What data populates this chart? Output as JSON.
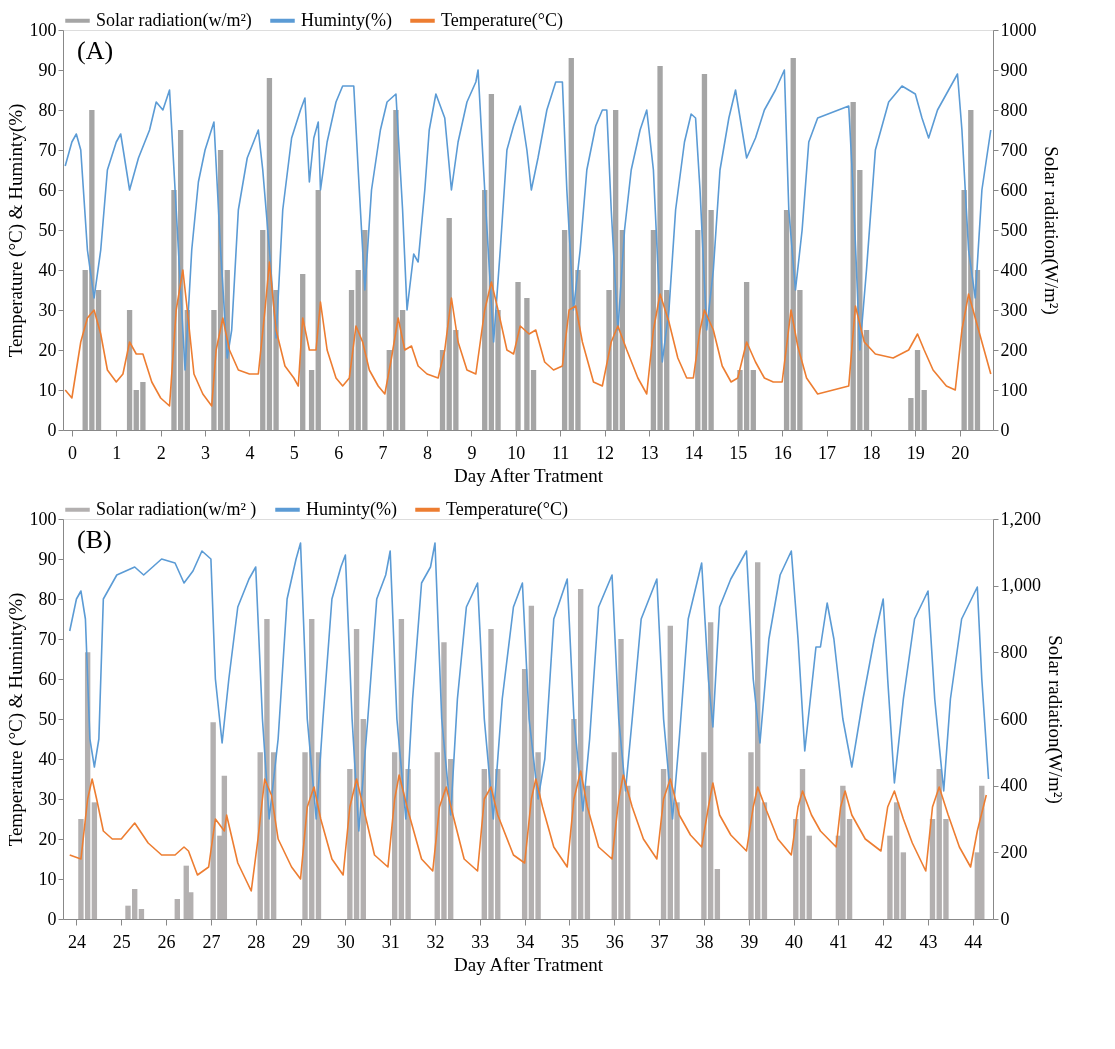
{
  "chart_data": [
    {
      "type": "line",
      "annotations": [
        "(A)"
      ],
      "xlabel": "Day After Tratment",
      "ylabel": "Temperature (°C) & Huminty(%)",
      "y2label": "Solar radiation(W/m²)",
      "xlim": [
        -0.2,
        20.75
      ],
      "xticks": [
        0,
        1,
        2,
        3,
        4,
        5,
        6,
        7,
        8,
        9,
        10,
        11,
        12,
        13,
        14,
        15,
        16,
        17,
        18,
        19,
        20
      ],
      "ylim": [
        0,
        100
      ],
      "yticks": [
        0,
        10,
        20,
        30,
        40,
        50,
        60,
        70,
        80,
        90,
        100
      ],
      "y2lim": [
        0,
        1000
      ],
      "y2ticks": [
        0,
        100,
        200,
        300,
        400,
        500,
        600,
        700,
        800,
        900,
        1000
      ],
      "grid": false,
      "legend": "top",
      "series": [
        {
          "name": "Solar radiation(w/m²)",
          "type": "bar",
          "axis": "y2",
          "color": "#a5a5a5",
          "x": [
            0.3,
            0.45,
            0.6,
            1.3,
            1.45,
            1.6,
            2.3,
            2.45,
            2.6,
            3.2,
            3.35,
            3.5,
            4.3,
            4.45,
            4.6,
            5.2,
            5.4,
            5.55,
            6.3,
            6.45,
            6.6,
            7.15,
            7.3,
            7.45,
            8.35,
            8.5,
            8.65,
            9.3,
            9.45,
            9.6,
            10.05,
            10.25,
            10.4,
            11.1,
            11.25,
            11.4,
            12.1,
            12.25,
            12.4,
            13.1,
            13.25,
            13.4,
            14.1,
            14.25,
            14.4,
            15.05,
            15.2,
            15.35,
            16.1,
            16.25,
            16.4,
            17.6,
            17.75,
            17.9,
            18.9,
            19.05,
            19.2,
            20.1,
            20.25,
            20.4
          ],
          "values": [
            400,
            800,
            350,
            300,
            100,
            120,
            600,
            750,
            300,
            300,
            700,
            400,
            500,
            880,
            350,
            390,
            150,
            600,
            350,
            400,
            500,
            200,
            800,
            300,
            200,
            530,
            250,
            600,
            840,
            300,
            370,
            330,
            150,
            500,
            930,
            400,
            350,
            800,
            500,
            500,
            910,
            350,
            500,
            890,
            550,
            150,
            370,
            150,
            550,
            930,
            350,
            820,
            650,
            250,
            80,
            200,
            100,
            600,
            800,
            400
          ]
        },
        {
          "name": "Huminty(%)",
          "axis": "y",
          "color": "#5b9bd5",
          "x": [
            -0.15,
            0.0,
            0.1,
            0.2,
            0.35,
            0.5,
            0.65,
            0.8,
            1.0,
            1.1,
            1.3,
            1.5,
            1.75,
            1.9,
            2.05,
            2.2,
            2.35,
            2.55,
            2.7,
            2.85,
            3.0,
            3.2,
            3.35,
            3.5,
            3.6,
            3.75,
            3.95,
            4.2,
            4.3,
            4.45,
            4.6,
            4.75,
            4.95,
            5.15,
            5.25,
            5.35,
            5.45,
            5.55,
            5.6,
            5.75,
            5.95,
            6.1,
            6.35,
            6.45,
            6.6,
            6.75,
            6.95,
            7.1,
            7.3,
            7.45,
            7.55,
            7.7,
            7.8,
            7.95,
            8.05,
            8.2,
            8.4,
            8.55,
            8.7,
            8.9,
            9.1,
            9.15,
            9.3,
            9.5,
            9.65,
            9.8,
            9.95,
            10.1,
            10.25,
            10.35,
            10.5,
            10.7,
            10.9,
            11.05,
            11.15,
            11.3,
            11.45,
            11.6,
            11.8,
            11.95,
            12.05,
            12.15,
            12.3,
            12.45,
            12.6,
            12.8,
            12.95,
            13.1,
            13.3,
            13.45,
            13.6,
            13.8,
            13.95,
            14.05,
            14.15,
            14.3,
            14.45,
            14.6,
            14.8,
            14.95,
            15.2,
            15.4,
            15.6,
            15.85,
            16.05,
            16.15,
            16.3,
            16.45,
            16.6,
            16.8,
            17.5,
            17.6,
            17.75,
            17.9,
            18.1,
            18.4,
            18.7,
            19.0,
            19.15,
            19.3,
            19.5,
            19.75,
            19.95,
            20.05,
            20.2,
            20.35,
            20.5,
            20.7
          ],
          "values": [
            66,
            72,
            74,
            70,
            45,
            33,
            45,
            65,
            72,
            74,
            60,
            68,
            75,
            82,
            80,
            85,
            55,
            15,
            45,
            62,
            70,
            77,
            45,
            18,
            25,
            55,
            68,
            75,
            65,
            45,
            23,
            55,
            73,
            80,
            83,
            62,
            73,
            77,
            60,
            72,
            82,
            86,
            86,
            65,
            35,
            60,
            75,
            82,
            84,
            55,
            30,
            44,
            42,
            60,
            75,
            84,
            78,
            60,
            72,
            82,
            87,
            90,
            60,
            22,
            45,
            70,
            76,
            81,
            70,
            60,
            68,
            80,
            87,
            87,
            60,
            30,
            45,
            65,
            76,
            80,
            80,
            55,
            25,
            50,
            65,
            75,
            80,
            65,
            17,
            30,
            55,
            72,
            79,
            78,
            60,
            25,
            40,
            65,
            78,
            85,
            68,
            73,
            80,
            85,
            90,
            55,
            35,
            50,
            72,
            78,
            81,
            60,
            20,
            40,
            70,
            82,
            86,
            84,
            78,
            73,
            80,
            85,
            89,
            75,
            45,
            33,
            60,
            75
          ]
        },
        {
          "name": "Temperature(°C)",
          "axis": "y",
          "color": "#ed7d31",
          "x": [
            -0.15,
            0.0,
            0.2,
            0.35,
            0.5,
            0.65,
            0.8,
            1.0,
            1.15,
            1.3,
            1.45,
            1.6,
            1.8,
            2.0,
            2.2,
            2.35,
            2.5,
            2.6,
            2.75,
            2.95,
            3.15,
            3.25,
            3.4,
            3.55,
            3.75,
            4.0,
            4.2,
            4.35,
            4.45,
            4.6,
            4.8,
            5.0,
            5.1,
            5.2,
            5.35,
            5.5,
            5.6,
            5.75,
            5.95,
            6.1,
            6.25,
            6.4,
            6.55,
            6.7,
            6.9,
            7.05,
            7.2,
            7.35,
            7.5,
            7.65,
            7.8,
            8.0,
            8.25,
            8.4,
            8.55,
            8.7,
            8.9,
            9.1,
            9.3,
            9.45,
            9.6,
            9.8,
            9.95,
            10.1,
            10.3,
            10.45,
            10.65,
            10.85,
            11.05,
            11.2,
            11.35,
            11.5,
            11.75,
            11.95,
            12.15,
            12.3,
            12.5,
            12.75,
            12.95,
            13.1,
            13.25,
            13.45,
            13.65,
            13.85,
            14.0,
            14.15,
            14.25,
            14.45,
            14.65,
            14.85,
            15.0,
            15.2,
            15.4,
            15.6,
            15.8,
            16.0,
            16.2,
            16.35,
            16.55,
            16.8,
            17.5,
            17.65,
            17.85,
            18.1,
            18.5,
            18.85,
            19.05,
            19.2,
            19.4,
            19.7,
            19.9,
            20.05,
            20.2,
            20.35,
            20.55,
            20.7
          ],
          "values": [
            10,
            8,
            22,
            28,
            30,
            24,
            15,
            12,
            14,
            22,
            19,
            19,
            12,
            8,
            6,
            30,
            40,
            30,
            14,
            9,
            6,
            20,
            28,
            20,
            15,
            14,
            14,
            30,
            42,
            25,
            16,
            13,
            11,
            28,
            20,
            20,
            32,
            20,
            13,
            11,
            13,
            26,
            22,
            15,
            11,
            9,
            18,
            28,
            20,
            21,
            16,
            14,
            13,
            20,
            33,
            22,
            15,
            14,
            30,
            37,
            30,
            20,
            19,
            26,
            24,
            25,
            17,
            15,
            16,
            30,
            31,
            22,
            12,
            11,
            22,
            26,
            20,
            13,
            9,
            25,
            34,
            27,
            18,
            13,
            13,
            25,
            30,
            25,
            16,
            12,
            13,
            22,
            17,
            13,
            12,
            12,
            30,
            21,
            13,
            9,
            11,
            31,
            22,
            19,
            18,
            20,
            24,
            20,
            15,
            11,
            10,
            25,
            34,
            28,
            20,
            14
          ]
        }
      ]
    },
    {
      "type": "line",
      "annotations": [
        "(B)"
      ],
      "xlabel": "Day After Tratment",
      "ylabel": "Temperature (°C) & Huminty(%)",
      "y2label": "Solar radiation(W/m²)",
      "xlim": [
        23.7,
        44.45
      ],
      "xticks": [
        24,
        25,
        26,
        27,
        28,
        29,
        30,
        31,
        32,
        33,
        34,
        35,
        36,
        37,
        38,
        39,
        40,
        41,
        42,
        43,
        44
      ],
      "ylim": [
        0,
        100
      ],
      "yticks": [
        0,
        10,
        20,
        30,
        40,
        50,
        60,
        70,
        80,
        90,
        100
      ],
      "y2lim": [
        0,
        1200
      ],
      "y2ticks": [
        0,
        200,
        400,
        600,
        800,
        {
          "value": 1000,
          "label": "1,000"
        },
        {
          "value": 1200,
          "label": "1,200"
        }
      ],
      "grid": false,
      "legend": "top",
      "series": [
        {
          "name": "Solar radiation(w/m² )",
          "type": "bar",
          "axis": "y2",
          "color": "#b3b0b0",
          "x": [
            24.1,
            24.25,
            24.4,
            25.15,
            25.3,
            25.45,
            26.25,
            26.45,
            26.55,
            27.05,
            27.2,
            27.3,
            28.1,
            28.25,
            28.4,
            29.1,
            29.25,
            29.4,
            30.1,
            30.25,
            30.4,
            31.1,
            31.25,
            31.4,
            32.05,
            32.2,
            32.35,
            33.1,
            33.25,
            33.4,
            34.0,
            34.15,
            34.3,
            35.1,
            35.25,
            35.4,
            36.0,
            36.15,
            36.3,
            37.1,
            37.25,
            37.4,
            38.0,
            38.15,
            38.3,
            39.05,
            39.2,
            39.35,
            40.05,
            40.2,
            40.35,
            41.0,
            41.1,
            41.25,
            42.15,
            42.3,
            42.45,
            43.1,
            43.25,
            43.4,
            44.1,
            44.2
          ],
          "values": [
            300,
            800,
            350,
            40,
            90,
            30,
            60,
            160,
            80,
            590,
            250,
            430,
            500,
            900,
            500,
            500,
            900,
            500,
            450,
            870,
            600,
            500,
            900,
            450,
            500,
            830,
            480,
            450,
            870,
            450,
            750,
            940,
            500,
            600,
            990,
            400,
            500,
            840,
            400,
            450,
            880,
            350,
            500,
            890,
            150,
            500,
            1070,
            350,
            300,
            450,
            250,
            250,
            400,
            300,
            250,
            350,
            200,
            300,
            450,
            300,
            200,
            400
          ]
        },
        {
          "name": "Huminty(%)",
          "axis": "y",
          "color": "#5b9bd5",
          "x": [
            23.85,
            24.0,
            24.1,
            24.2,
            24.3,
            24.4,
            24.5,
            24.6,
            24.9,
            25.3,
            25.5,
            25.9,
            26.2,
            26.4,
            26.6,
            26.8,
            27.0,
            27.1,
            27.25,
            27.4,
            27.6,
            27.85,
            28.0,
            28.15,
            28.3,
            28.5,
            28.7,
            28.9,
            29.0,
            29.15,
            29.35,
            29.5,
            29.7,
            29.9,
            30.0,
            30.15,
            30.3,
            30.5,
            30.7,
            30.9,
            31.0,
            31.15,
            31.35,
            31.5,
            31.7,
            31.9,
            32.0,
            32.15,
            32.35,
            32.5,
            32.7,
            32.95,
            33.1,
            33.3,
            33.5,
            33.75,
            33.95,
            34.1,
            34.3,
            34.45,
            34.65,
            34.95,
            35.1,
            35.3,
            35.45,
            35.65,
            35.95,
            36.1,
            36.25,
            36.4,
            36.6,
            36.95,
            37.1,
            37.3,
            37.45,
            37.65,
            37.95,
            38.1,
            38.2,
            38.35,
            38.6,
            38.95,
            39.1,
            39.25,
            39.45,
            39.7,
            39.95,
            40.1,
            40.25,
            40.5,
            40.6,
            40.75,
            40.9,
            41.1,
            41.3,
            41.55,
            41.8,
            42.0,
            42.1,
            42.25,
            42.45,
            42.7,
            43.0,
            43.15,
            43.35,
            43.5,
            43.75,
            44.1,
            44.2,
            44.35
          ],
          "values": [
            72,
            80,
            82,
            75,
            45,
            38,
            45,
            80,
            86,
            88,
            86,
            90,
            89,
            84,
            87,
            92,
            90,
            60,
            44,
            60,
            78,
            85,
            88,
            50,
            25,
            45,
            80,
            90,
            94,
            50,
            25,
            50,
            80,
            88,
            91,
            50,
            22,
            50,
            80,
            86,
            92,
            50,
            25,
            55,
            84,
            88,
            94,
            50,
            26,
            55,
            78,
            84,
            50,
            25,
            55,
            78,
            84,
            50,
            30,
            40,
            75,
            85,
            50,
            27,
            45,
            78,
            86,
            50,
            32,
            50,
            75,
            85,
            50,
            25,
            45,
            75,
            89,
            60,
            48,
            78,
            85,
            92,
            60,
            44,
            70,
            86,
            92,
            70,
            42,
            68,
            68,
            79,
            70,
            50,
            38,
            55,
            70,
            80,
            60,
            34,
            55,
            75,
            82,
            55,
            32,
            55,
            75,
            83,
            60,
            35
          ]
        },
        {
          "name": "Temperature(°C)",
          "axis": "y",
          "color": "#ed7d31",
          "x": [
            23.85,
            24.1,
            24.25,
            24.35,
            24.45,
            24.6,
            24.8,
            25.0,
            25.3,
            25.6,
            25.9,
            26.2,
            26.4,
            26.5,
            26.7,
            26.95,
            27.1,
            27.3,
            27.35,
            27.6,
            27.9,
            28.05,
            28.2,
            28.35,
            28.5,
            28.8,
            29.0,
            29.15,
            29.3,
            29.45,
            29.7,
            29.95,
            30.1,
            30.25,
            30.4,
            30.65,
            30.95,
            31.1,
            31.2,
            31.4,
            31.7,
            31.95,
            32.1,
            32.25,
            32.4,
            32.65,
            32.95,
            33.1,
            33.25,
            33.4,
            33.75,
            34.0,
            34.15,
            34.25,
            34.4,
            34.65,
            34.95,
            35.1,
            35.25,
            35.4,
            35.65,
            35.95,
            36.1,
            36.2,
            36.4,
            36.65,
            36.95,
            37.1,
            37.25,
            37.45,
            37.7,
            37.95,
            38.1,
            38.2,
            38.35,
            38.6,
            38.95,
            39.1,
            39.2,
            39.4,
            39.65,
            39.95,
            40.1,
            40.2,
            40.4,
            40.6,
            40.95,
            41.05,
            41.15,
            41.3,
            41.6,
            41.95,
            42.1,
            42.25,
            42.45,
            42.65,
            42.95,
            43.1,
            43.25,
            43.45,
            43.7,
            43.95,
            44.1,
            44.3
          ],
          "values": [
            16,
            15,
            30,
            35,
            30,
            22,
            20,
            20,
            24,
            19,
            16,
            16,
            18,
            17,
            11,
            13,
            25,
            22,
            26,
            14,
            7,
            20,
            35,
            31,
            20,
            13,
            10,
            28,
            33,
            25,
            15,
            11,
            28,
            35,
            28,
            16,
            13,
            30,
            36,
            27,
            15,
            12,
            28,
            33,
            26,
            15,
            12,
            30,
            33,
            26,
            16,
            14,
            30,
            35,
            28,
            18,
            13,
            30,
            37,
            28,
            18,
            15,
            30,
            36,
            28,
            20,
            15,
            30,
            35,
            26,
            21,
            18,
            28,
            34,
            26,
            21,
            17,
            28,
            33,
            27,
            20,
            16,
            28,
            32,
            26,
            22,
            18,
            28,
            32,
            26,
            20,
            17,
            28,
            32,
            25,
            19,
            12,
            28,
            33,
            26,
            18,
            13,
            22,
            31
          ]
        }
      ]
    }
  ]
}
